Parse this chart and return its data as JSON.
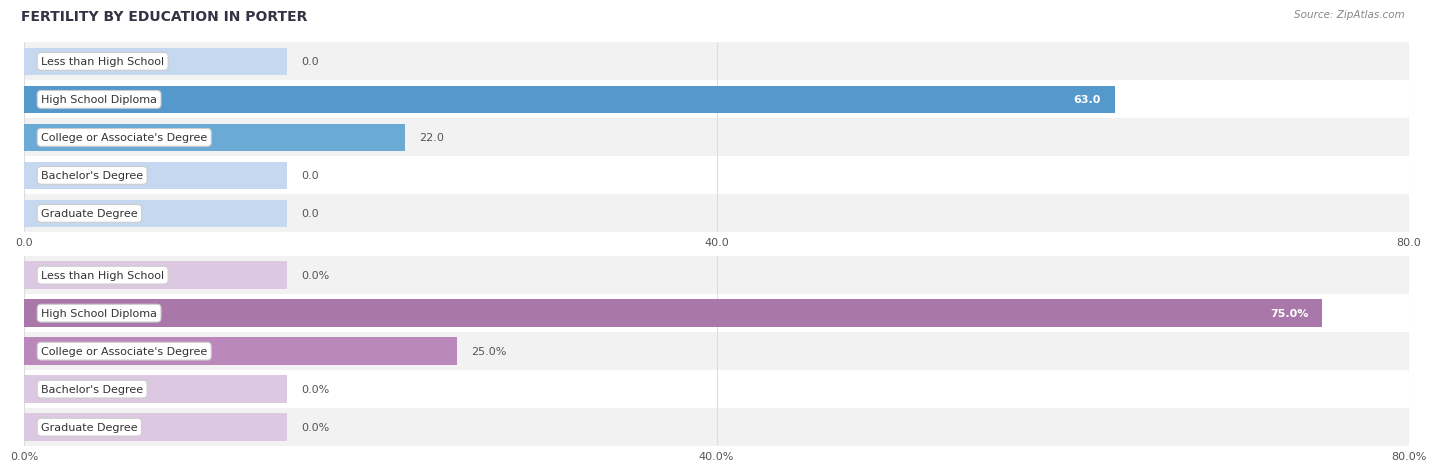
{
  "title": "FERTILITY BY EDUCATION IN PORTER",
  "source": "Source: ZipAtlas.com",
  "chart1": {
    "categories": [
      "Less than High School",
      "High School Diploma",
      "College or Associate's Degree",
      "Bachelor's Degree",
      "Graduate Degree"
    ],
    "values": [
      0.0,
      63.0,
      22.0,
      0.0,
      0.0
    ],
    "xlim": [
      0,
      80.0
    ],
    "xticks": [
      0.0,
      40.0,
      80.0
    ],
    "xtick_labels": [
      "0.0",
      "40.0",
      "80.0"
    ],
    "bar_color_zero": "#C5D8F0",
    "bar_color_nonzero": "#6AAAD4",
    "bar_color_max": "#5599CC",
    "row_bg_odd": "#F2F2F2",
    "row_bg_even": "#FFFFFF"
  },
  "chart2": {
    "categories": [
      "Less than High School",
      "High School Diploma",
      "College or Associate's Degree",
      "Bachelor's Degree",
      "Graduate Degree"
    ],
    "values": [
      0.0,
      75.0,
      25.0,
      0.0,
      0.0
    ],
    "xlim": [
      0,
      80.0
    ],
    "xticks": [
      0.0,
      40.0,
      80.0
    ],
    "xtick_labels": [
      "0.0%",
      "40.0%",
      "80.0%"
    ],
    "bar_color_zero": "#DCC8E0",
    "bar_color_nonzero": "#BB88BB",
    "bar_color_max": "#AA77AA",
    "row_bg_odd": "#F2F2F2",
    "row_bg_even": "#FFFFFF"
  },
  "label_box_facecolor": "#FFFFFF",
  "label_box_edgecolor": "#CCCCCC",
  "label_fontsize": 8,
  "tick_fontsize": 8,
  "value_fontsize": 8,
  "title_fontsize": 10,
  "source_fontsize": 7.5,
  "bar_height": 0.72,
  "fig_bg": "#FFFFFF",
  "title_color": "#333344",
  "source_color": "#888888",
  "value_color_inside": "#FFFFFF",
  "value_color_outside": "#555555",
  "grid_color": "#DDDDDD",
  "label_color": "#333333"
}
